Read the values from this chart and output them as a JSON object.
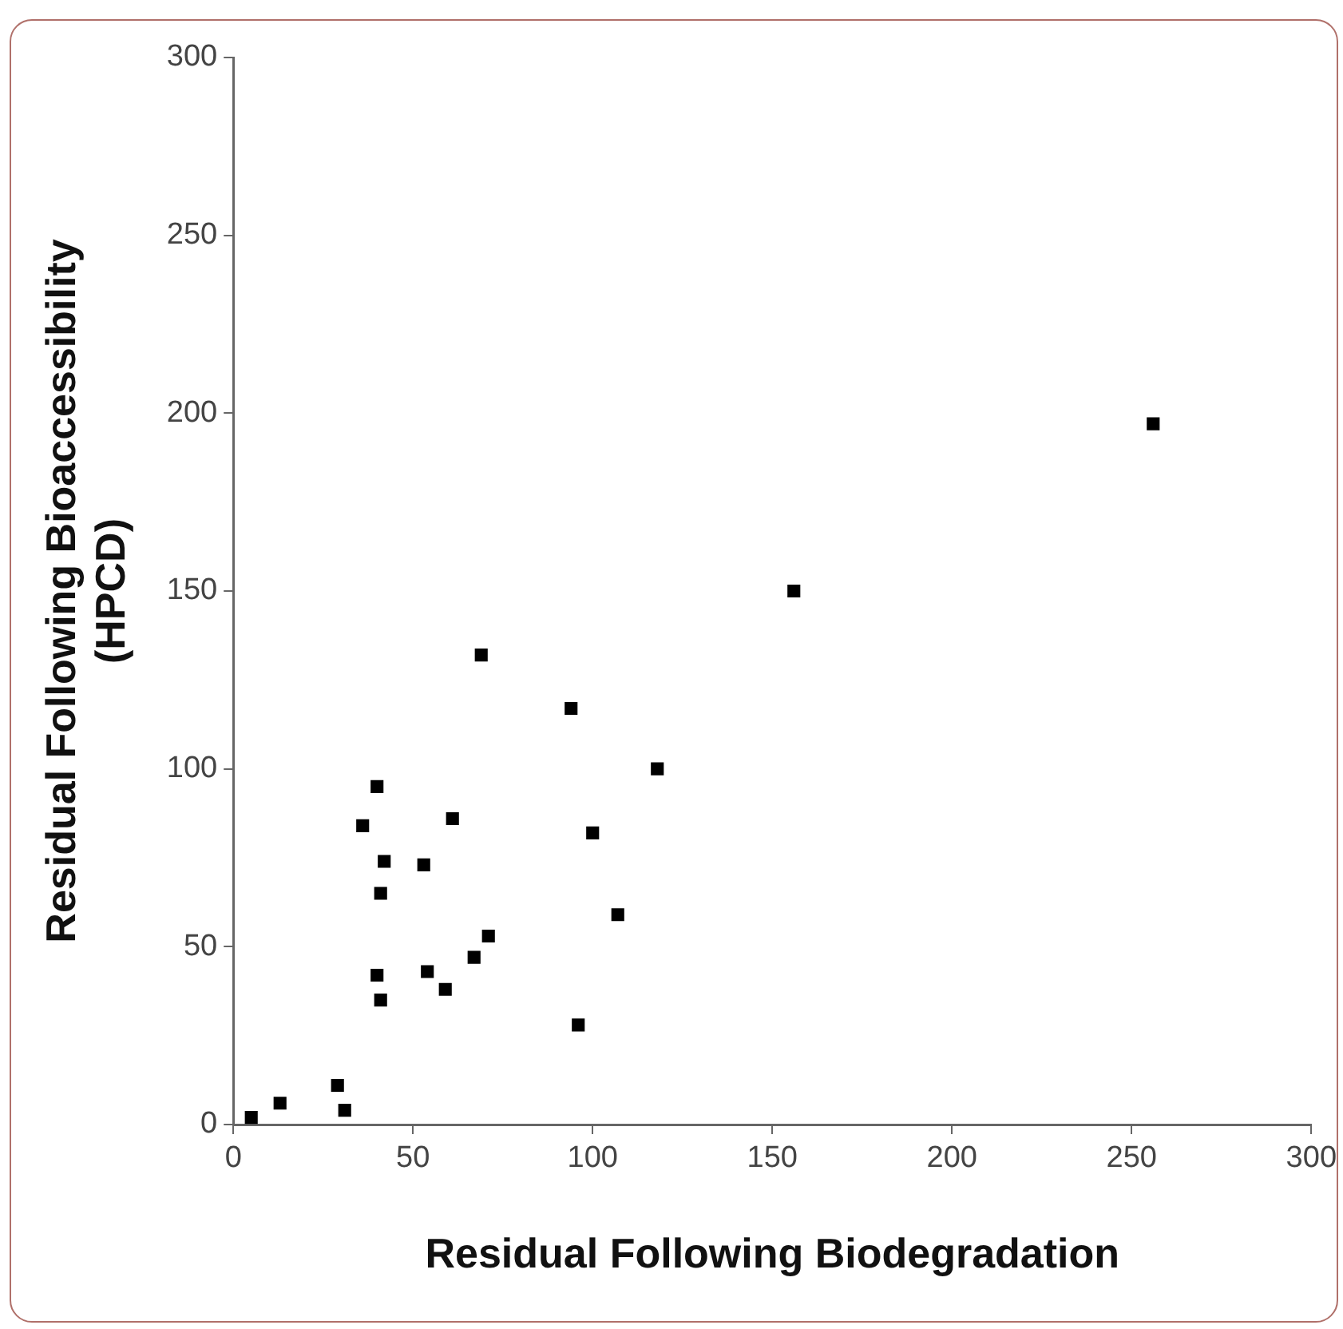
{
  "chart_data": {
    "type": "scatter",
    "xlabel": "Residual Following Biodegradation",
    "ylabel": "Residual Following Bioaccessibility (HPCD)",
    "x": [
      5,
      13,
      29,
      31,
      36,
      40,
      42,
      41,
      40,
      41,
      53,
      54,
      59,
      61,
      67,
      71,
      69,
      94,
      96,
      100,
      107,
      118,
      156,
      256
    ],
    "series": [
      {
        "color": "#000000",
        "values": [
          2,
          6,
          11,
          4,
          84,
          95,
          74,
          65,
          42,
          35,
          73,
          43,
          38,
          86,
          47,
          53,
          132,
          117,
          28,
          82,
          59,
          100,
          150,
          197
        ]
      }
    ],
    "xlim": [
      0,
      300
    ],
    "xticks": [
      0,
      50,
      100,
      150,
      200,
      250,
      300
    ],
    "ylim": [
      0,
      300
    ],
    "yticks": [
      0,
      50,
      100,
      150,
      200,
      250,
      300
    ],
    "marker": "square",
    "grid": false,
    "legend": false
  }
}
